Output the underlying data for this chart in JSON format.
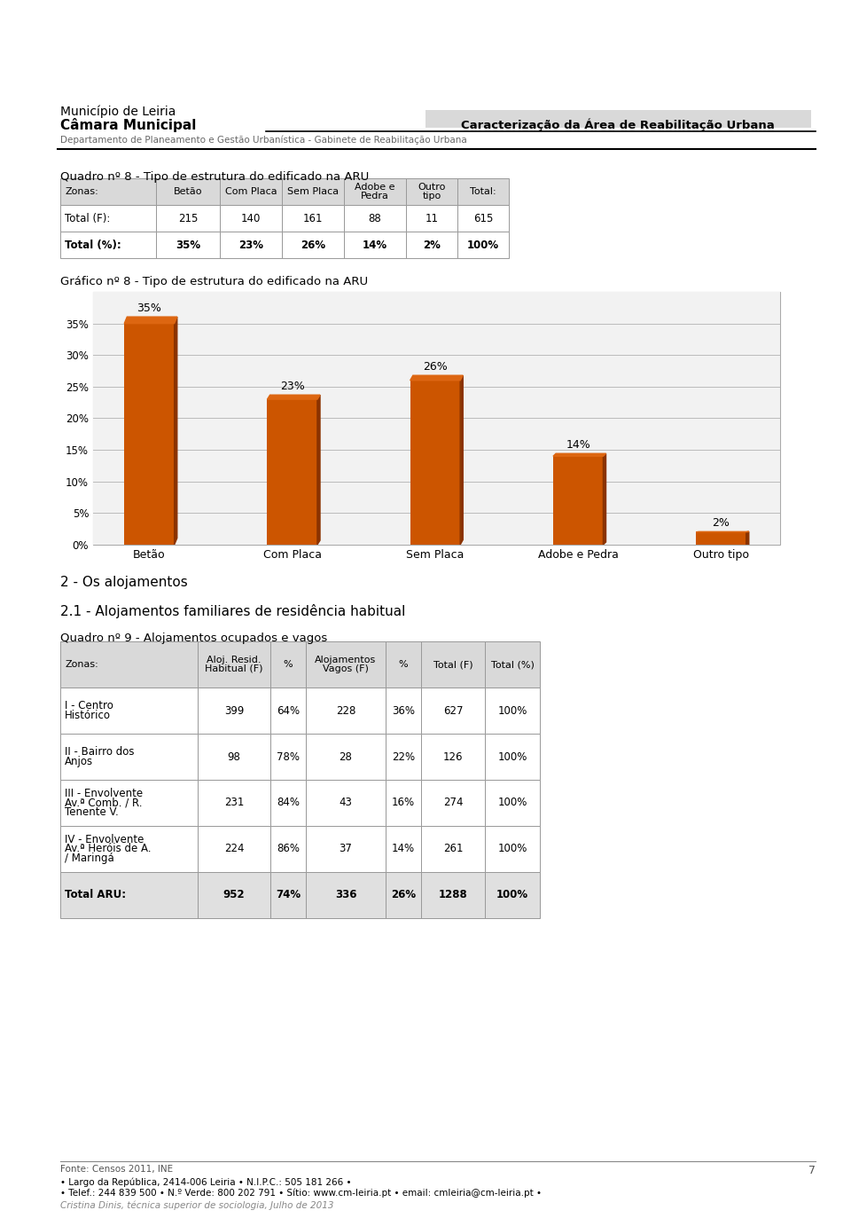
{
  "page_bg": "#ffffff",
  "header_municipality": "Município de Leiria",
  "header_camara": "Câmara Municipal",
  "header_dept": "Departamento de Planeamento e Gestão Urbanística - Gabinete de Reabilitação Urbana",
  "header_right": "Caracterização da Área de Reabilitação Urbana",
  "header_right_bg": "#d9d9d9",
  "quadro8_title": "Quadro nº 8 - Tipo de estrutura do edificado na ARU",
  "quadro8_col_headers": [
    "Zonas:",
    "Betão",
    "Com Placa",
    "Sem Placa",
    "Adobe e\nPedra",
    "Outro\ntipo",
    "Total:"
  ],
  "quadro8_row1_label": "Total (F):",
  "quadro8_row1": [
    "215",
    "140",
    "161",
    "88",
    "11",
    "615"
  ],
  "quadro8_row2_label": "Total (%):",
  "quadro8_row2": [
    "35%",
    "23%",
    "26%",
    "14%",
    "2%",
    "100%"
  ],
  "grafico8_title": "Gráfico nº 8 - Tipo de estrutura do edificado na ARU",
  "bar_categories": [
    "Betão",
    "Com Placa",
    "Sem Placa",
    "Adobe e Pedra",
    "Outro tipo"
  ],
  "bar_values": [
    35,
    23,
    26,
    14,
    2
  ],
  "bar_labels": [
    "35%",
    "23%",
    "26%",
    "14%",
    "2%"
  ],
  "bar_color": "#cc5500",
  "bar_color_dark": "#8b3300",
  "bar_color_top": "#dd6611",
  "chart_bg": "#f2f2f2",
  "chart_grid_color": "#bbbbbb",
  "y_ticks": [
    0,
    5,
    10,
    15,
    20,
    25,
    30,
    35
  ],
  "y_tick_labels": [
    "0%",
    "5%",
    "10%",
    "15%",
    "20%",
    "25%",
    "30%",
    "35%"
  ],
  "section2_title": "2 - Os alojamentos",
  "section21_title": "2.1 - Alojamentos familiares de residência habitual",
  "quadro9_title": "Quadro nº 9 - Alojamentos ocupados e vagos",
  "quadro9_col_headers": [
    "Zonas:",
    "Aloj. Resid.\nHabitual (F)",
    "%",
    "Alojamentos\nVagos (F)",
    "%",
    "Total (F)",
    "Total (%)"
  ],
  "quadro9_rows": [
    [
      "I - Centro\nHistórico",
      "399",
      "64%",
      "228",
      "36%",
      "627",
      "100%"
    ],
    [
      "II - Bairro dos\nAnjos",
      "98",
      "78%",
      "28",
      "22%",
      "126",
      "100%"
    ],
    [
      "III - Envolvente\nAv.ª Comb. / R.\nTenente V.",
      "231",
      "84%",
      "43",
      "16%",
      "274",
      "100%"
    ],
    [
      "IV - Envolvente\nAv.ª Heróis de A.\n/ Maringá",
      "224",
      "86%",
      "37",
      "14%",
      "261",
      "100%"
    ],
    [
      "Total ARU:",
      "952",
      "74%",
      "336",
      "26%",
      "1288",
      "100%"
    ]
  ],
  "table_header_bg": "#d9d9d9",
  "table_total_bg": "#e0e0e0",
  "table_border": "#999999",
  "footer_source": "Fonte: Censos 2011, INE",
  "footer_page": "7",
  "footer_line1": "• Largo da República, 2414-006 Leiria • N.I.P.C.: 505 181 266 •",
  "footer_line2": "• Telef.: 244 839 500 • N.º Verde: 800 202 791 • Sítio: www.cm-leiria.pt • email: cmleiria@cm-leiria.pt •",
  "footer_line3": "Cristina Dinis, técnica superior de sociologia, Julho de 2013"
}
